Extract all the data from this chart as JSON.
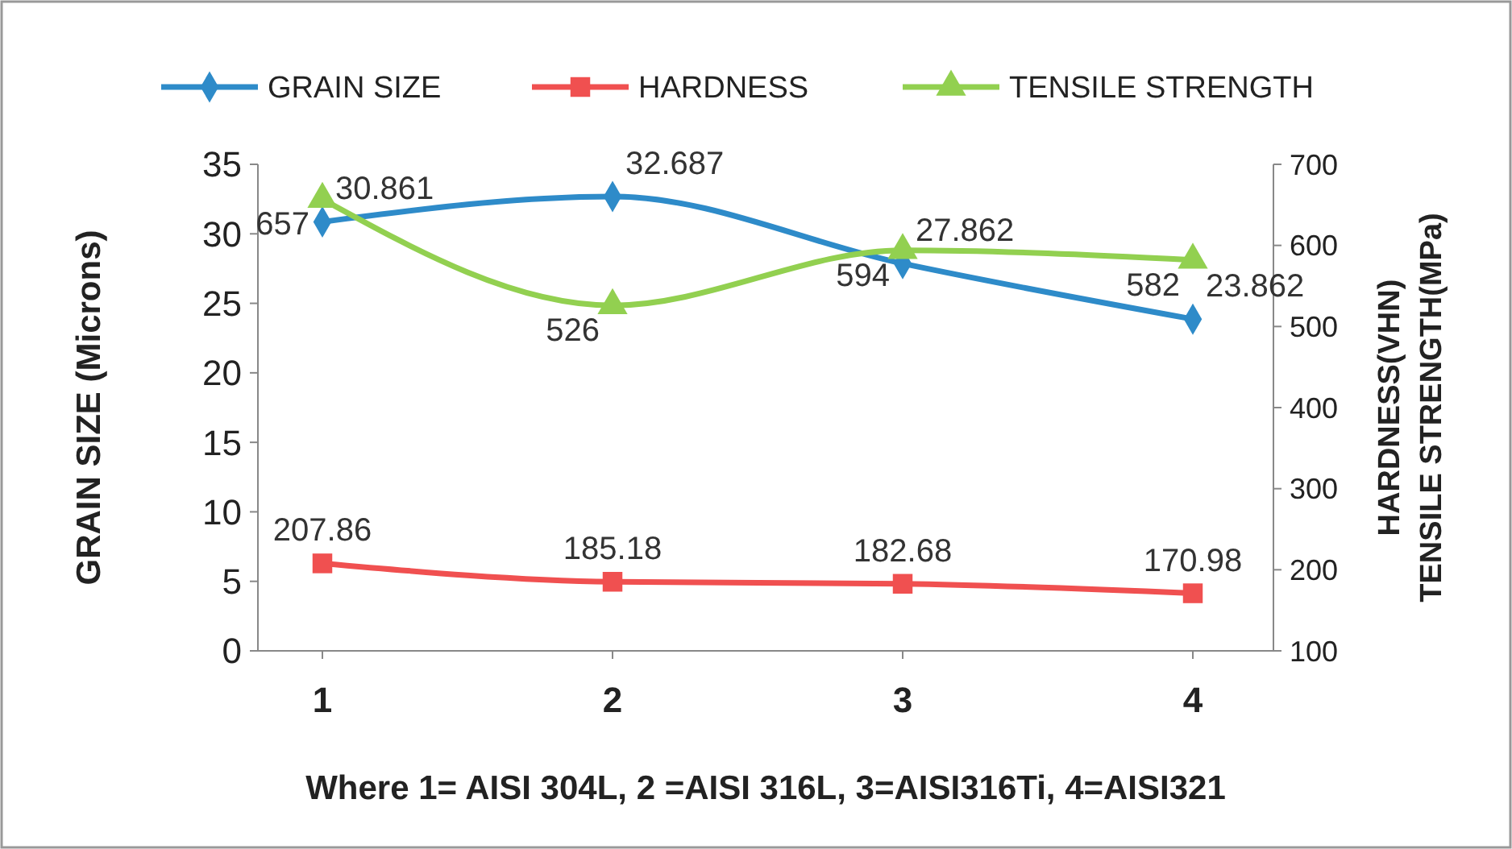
{
  "chart_data": {
    "type": "line",
    "categories": [
      "1",
      "2",
      "3",
      "4"
    ],
    "xlabel": "Where 1= AISI 304L,  2 =AISI 316L,  3=AISI316Ti, 4=AISI321",
    "ylabel": "GRAIN SIZE (Microns)",
    "y2label": "HARDNESS(VHN)\nTENSILE STRENGTH(MPa)",
    "ylim": [
      0,
      35
    ],
    "yticks": [
      0,
      5,
      10,
      15,
      20,
      25,
      30,
      35
    ],
    "y2lim": [
      100,
      700
    ],
    "y2ticks": [
      100,
      200,
      300,
      400,
      500,
      600,
      700
    ],
    "grid": false,
    "legend": "top",
    "data_labels": true,
    "series": [
      {
        "name": "GRAIN SIZE",
        "color": "#2e8bc9",
        "marker": "diamond",
        "values": [
          30.861,
          32.687,
          27.862,
          23.862
        ]
      },
      {
        "name": "HARDNESS",
        "color": "#f05050",
        "marker": "square",
        "axis": "y2",
        "values": [
          207.86,
          185.18,
          182.68,
          170.98
        ]
      },
      {
        "name": "TENSILE STRENGTH",
        "color": "#92d050",
        "marker": "triangle",
        "axis": "y2",
        "values": [
          657,
          526,
          594,
          582
        ]
      }
    ]
  }
}
